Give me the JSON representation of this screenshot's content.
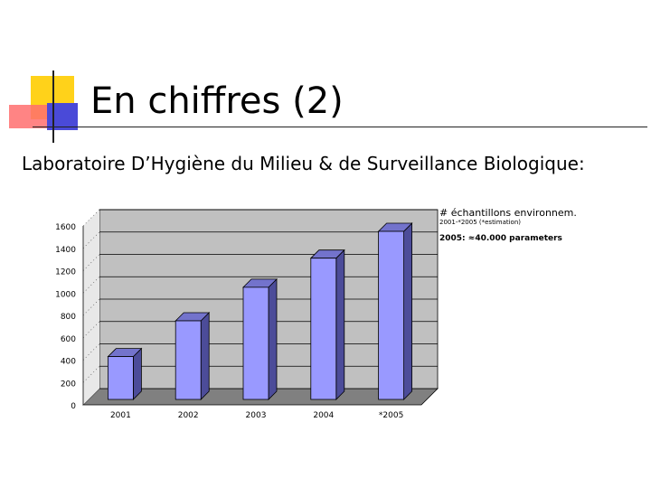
{
  "slide": {
    "title": "En chiffres (2)",
    "subtitle": "Laboratoire D’Hygiène du Milieu & de Surveillance Biologique:"
  },
  "annotations": {
    "line1": "# échantillons environnem.",
    "line2": "2001-*2005 (*estimation)",
    "line3": "2005: ≈40.000 parameters"
  },
  "colors": {
    "bar_front": "#9999ff",
    "bar_side": "#4c4c99",
    "bar_top": "#7373cc",
    "wall": "#c0c0c0",
    "floor": "#808080",
    "accent_yellow": "#ffd21a",
    "accent_red": "#ff6f6f",
    "accent_blue": "#4a4ad8"
  },
  "chart_data": {
    "type": "bar",
    "categories": [
      "2001",
      "2002",
      "2003",
      "2004",
      "*2005"
    ],
    "values": [
      480,
      800,
      1100,
      1360,
      1600
    ],
    "ylim": [
      0,
      1600
    ],
    "yticks": [
      "0",
      "200",
      "400",
      "600",
      "800",
      "1000",
      "1200",
      "1400",
      "1600"
    ],
    "xlabel": "",
    "ylabel": "",
    "grid": true,
    "style": "3d"
  }
}
